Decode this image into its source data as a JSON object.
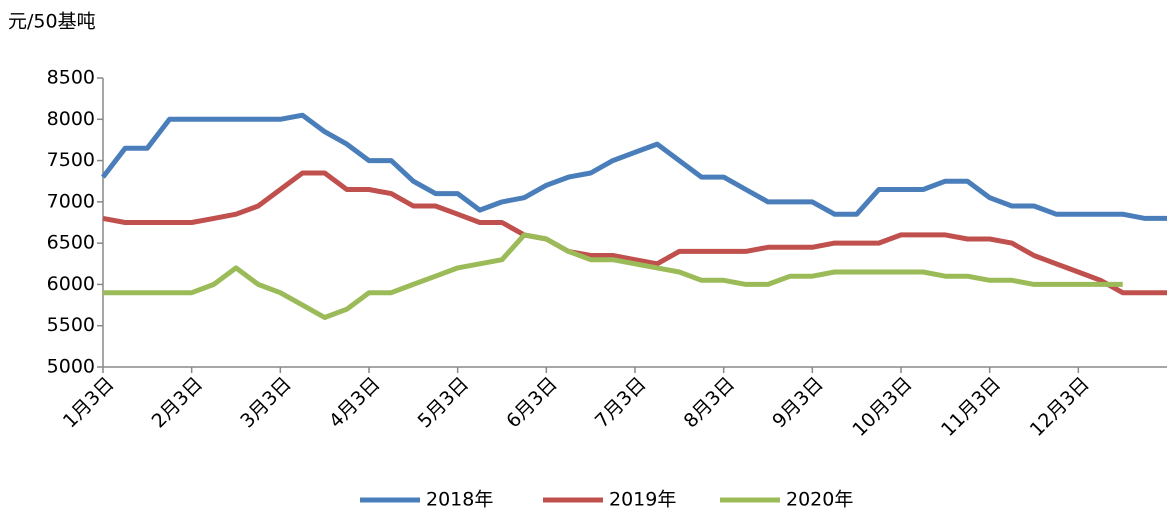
{
  "chart_data": {
    "type": "line",
    "y_label": "元/50基吨",
    "categories": [
      "1月3日",
      null,
      null,
      null,
      "2月3日",
      null,
      null,
      null,
      "3月3日",
      null,
      null,
      null,
      "4月3日",
      null,
      null,
      null,
      "5月3日",
      null,
      null,
      null,
      "6月3日",
      null,
      null,
      null,
      "7月3日",
      null,
      null,
      null,
      "8月3日",
      null,
      null,
      null,
      "9月3日",
      null,
      null,
      null,
      "10月3日",
      null,
      null,
      null,
      "11月3日",
      null,
      null,
      null,
      "12月3日",
      null,
      null,
      null,
      null
    ],
    "series": [
      {
        "name": "2018年",
        "color": "#4a7ebb",
        "values": [
          7300,
          7650,
          7650,
          8000,
          8000,
          8000,
          8000,
          8000,
          8000,
          8050,
          7850,
          7700,
          7500,
          7500,
          7250,
          7100,
          7100,
          6900,
          7000,
          7050,
          7200,
          7300,
          7350,
          7500,
          7600,
          7700,
          7500,
          7300,
          7300,
          7150,
          7000,
          7000,
          7000,
          6850,
          6850,
          7150,
          7150,
          7150,
          7250,
          7250,
          7050,
          6950,
          6950,
          6850,
          6850,
          6850,
          6850,
          6800,
          6800
        ]
      },
      {
        "name": "2019年",
        "color": "#c0504d",
        "values": [
          6800,
          6750,
          6750,
          6750,
          6750,
          6800,
          6850,
          6950,
          7150,
          7350,
          7350,
          7150,
          7150,
          7100,
          6950,
          6950,
          6850,
          6750,
          6750,
          6600,
          6550,
          6400,
          6350,
          6350,
          6300,
          6250,
          6400,
          6400,
          6400,
          6400,
          6450,
          6450,
          6450,
          6500,
          6500,
          6500,
          6600,
          6600,
          6600,
          6550,
          6550,
          6500,
          6350,
          6250,
          6150,
          6050,
          5900,
          5900,
          5900
        ]
      },
      {
        "name": "2020年",
        "color": "#9bbb59",
        "values": [
          5900,
          5900,
          5900,
          5900,
          5900,
          6000,
          6200,
          6000,
          5900,
          5750,
          5600,
          5700,
          5900,
          5900,
          6000,
          6100,
          6200,
          6250,
          6300,
          6600,
          6550,
          6400,
          6300,
          6300,
          6250,
          6200,
          6150,
          6050,
          6050,
          6000,
          6000,
          6100,
          6100,
          6150,
          6150,
          6150,
          6150,
          6150,
          6100,
          6100,
          6050,
          6050,
          6000,
          6000,
          6000,
          6000,
          6000,
          null,
          null
        ]
      }
    ],
    "ylim": [
      5000,
      8500
    ],
    "yticks": [
      5000,
      5500,
      6000,
      6500,
      7000,
      7500,
      8000,
      8500
    ],
    "legend": "bottom"
  }
}
